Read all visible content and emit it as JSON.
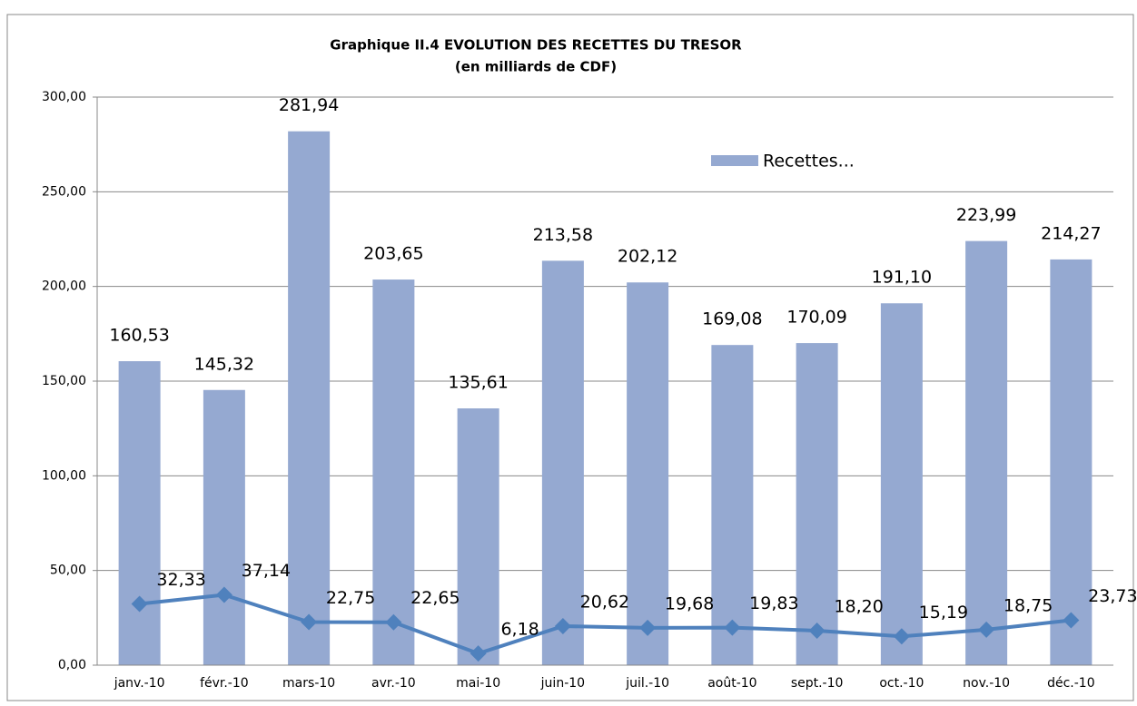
{
  "chart_data": {
    "type": "bar-line",
    "title": "Graphique II.4  EVOLUTION DES RECETTES DU TRESOR",
    "subtitle": "(en milliards de CDF)",
    "categories": [
      "janv.-10",
      "févr.-10",
      "mars-10",
      "avr.-10",
      "mai-10",
      "juin-10",
      "juil.-10",
      "août-10",
      "sept.-10",
      "oct.-10",
      "nov.-10",
      "déc.-10"
    ],
    "series": [
      {
        "name": "Recettes...",
        "type": "bar",
        "color": "#95a9d1",
        "values": [
          160.53,
          145.32,
          281.94,
          203.65,
          135.61,
          213.58,
          202.12,
          169.08,
          170.09,
          191.1,
          223.99,
          214.27
        ],
        "value_labels": [
          "160,53",
          "145,32",
          "281,94",
          "203,65",
          "135,61",
          "213,58",
          "202,12",
          "169,08",
          "170,09",
          "191,10",
          "223,99",
          "214,27"
        ]
      },
      {
        "type": "line",
        "color": "#4f81bd",
        "values": [
          32.33,
          37.14,
          22.75,
          22.65,
          6.18,
          20.62,
          19.68,
          19.83,
          18.2,
          15.19,
          18.75,
          23.73
        ],
        "value_labels": [
          "32,33",
          "37,14",
          "22,75",
          "22,65",
          "6,18",
          "20,62",
          "19,68",
          "19,83",
          "18,20",
          "15,19",
          "18,75",
          "23,73"
        ]
      }
    ],
    "ylim": [
      0,
      300
    ],
    "yticks": [
      {
        "value": 0,
        "label": "0,00"
      },
      {
        "value": 50,
        "label": "50,00"
      },
      {
        "value": 100,
        "label": "100,00"
      },
      {
        "value": 150,
        "label": "150,00"
      },
      {
        "value": 200,
        "label": "200,00"
      },
      {
        "value": 250,
        "label": "250,00"
      },
      {
        "value": 300,
        "label": "300,00"
      }
    ],
    "grid": true
  }
}
